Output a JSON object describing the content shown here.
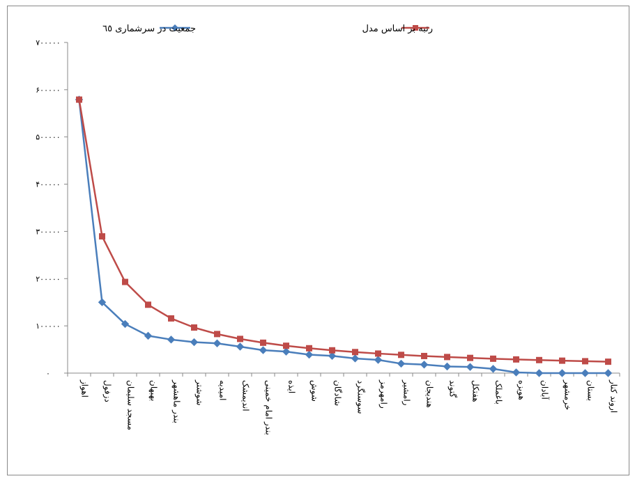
{
  "chart_data": {
    "type": "line",
    "title": "",
    "xlabel": "",
    "ylabel": "",
    "ylim": [
      0,
      700000
    ],
    "y_ticks": [
      0,
      100000,
      200000,
      300000,
      400000,
      500000,
      600000,
      700000
    ],
    "y_tick_labels": [
      "۰",
      "۱۰۰۰۰۰",
      "۲۰۰۰۰۰",
      "۳۰۰۰۰۰",
      "۴۰۰۰۰۰",
      "۵۰۰۰۰۰",
      "۶۰۰۰۰۰",
      "۷۰۰۰۰۰"
    ],
    "grid": false,
    "legend_position": "top",
    "categories": [
      "اهواز",
      "دزفول",
      "مسجد سلیمان",
      "بهبهان",
      "بندر ماهشهر",
      "شوشتر",
      "امیدیه",
      "اندیمشک",
      "بندر امام خمینی",
      "ایذه",
      "شوش",
      "شادگان",
      "سوسنگرد",
      "رامهرمز",
      "رامشیر",
      "هندیجان",
      "گتوند",
      "هفتکل",
      "باغملک",
      "هویزه",
      "آبادان",
      "خرمشهر",
      "بستان",
      "اروند کنار"
    ],
    "series": [
      {
        "name": "جمعیت در سرشماری ٦٥",
        "color": "#4a7ebb",
        "marker": "diamond",
        "values": [
          579000,
          150000,
          104000,
          79000,
          71000,
          65500,
          63000,
          56000,
          48500,
          45500,
          39000,
          36500,
          31000,
          28000,
          20000,
          18000,
          14000,
          13000,
          9000,
          1500,
          0,
          0,
          0,
          0
        ]
      },
      {
        "name": "رتبه بر اساس مدل",
        "color": "#be4b48",
        "marker": "square",
        "values": [
          579000,
          289500,
          193000,
          144750,
          115800,
          96500,
          82714,
          72375,
          64333,
          57900,
          52636,
          48250,
          44538,
          41357,
          38600,
          36187,
          34059,
          32167,
          30474,
          28950,
          27571,
          26318,
          25174,
          24125
        ]
      }
    ]
  }
}
